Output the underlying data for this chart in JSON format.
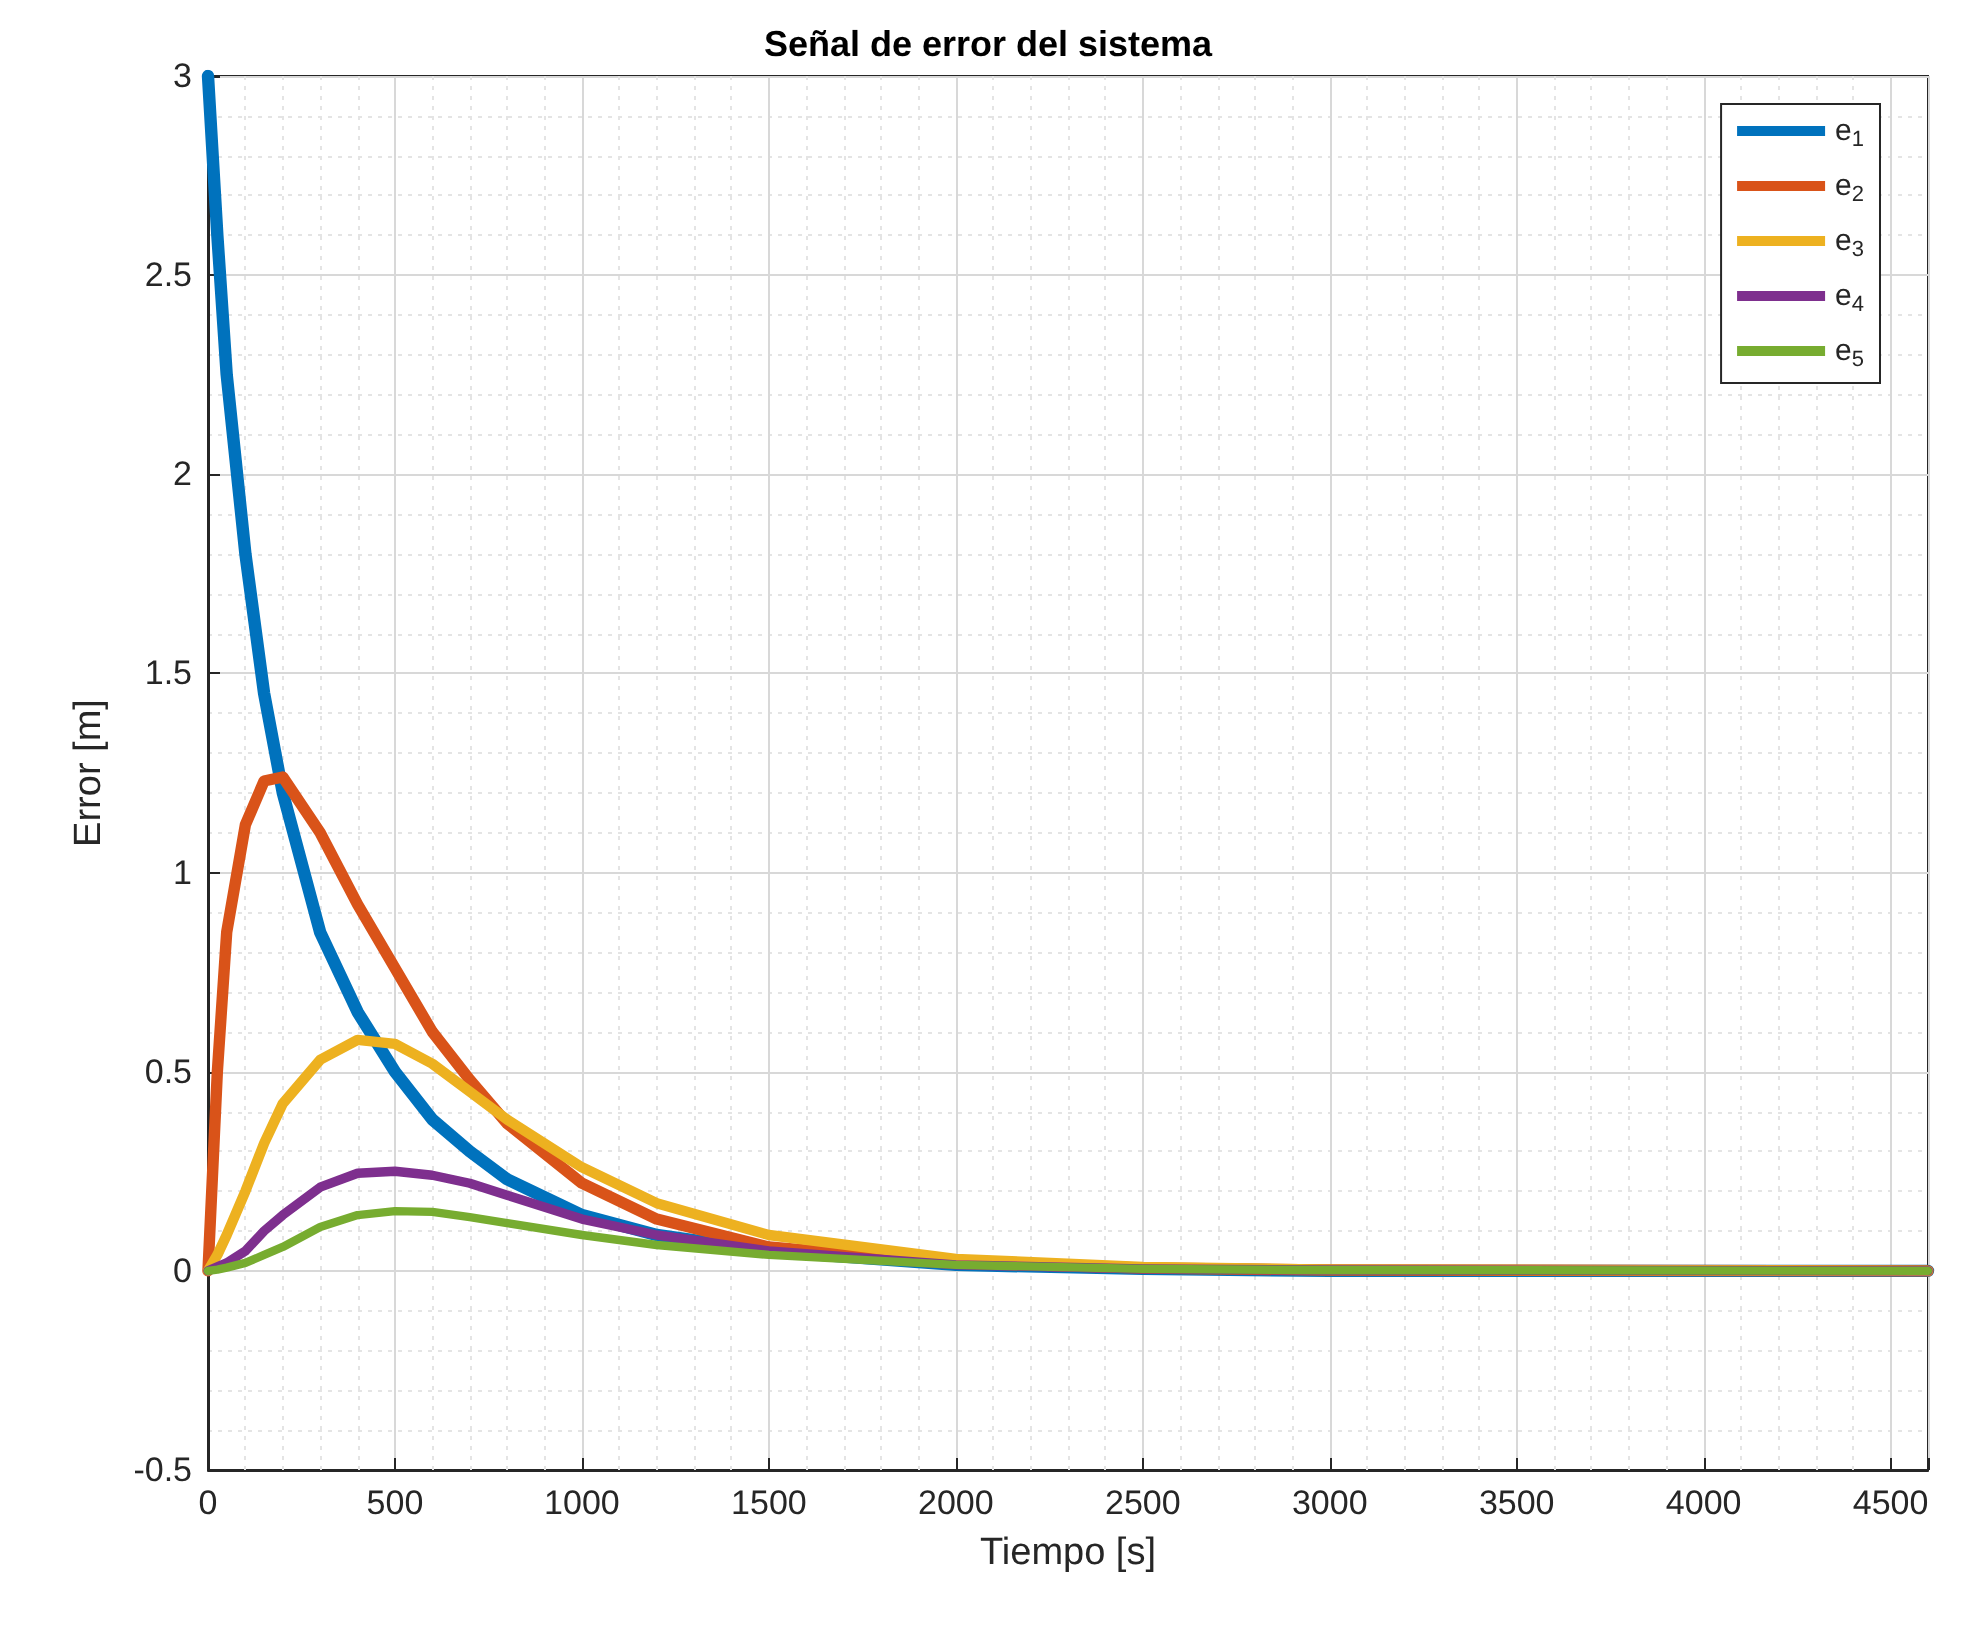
{
  "chart_data": {
    "type": "line",
    "title": "Señal de error del sistema",
    "xlabel": "Tiempo [s]",
    "ylabel": "Error [m]",
    "x": [
      0,
      25,
      50,
      100,
      150,
      200,
      300,
      400,
      500,
      600,
      700,
      800,
      1000,
      1200,
      1500,
      2000,
      2500,
      3000,
      4600
    ],
    "series": [
      {
        "name": "e$_{1}$",
        "color": "#0072bd",
        "values": [
          3,
          2.6,
          2.25,
          1.8,
          1.45,
          1.2,
          0.85,
          0.65,
          0.5,
          0.38,
          0.3,
          0.23,
          0.14,
          0.09,
          0.05,
          0.015,
          0.005,
          0,
          0
        ]
      },
      {
        "name": "e$_{2}$",
        "color": "#d95319",
        "values": [
          0,
          0.5,
          0.85,
          1.12,
          1.23,
          1.24,
          1.1,
          0.92,
          0.76,
          0.6,
          0.48,
          0.37,
          0.22,
          0.13,
          0.06,
          0.02,
          0.007,
          0.002,
          0
        ]
      },
      {
        "name": "e$_{3}$",
        "color": "#edb120",
        "values": [
          0,
          0.04,
          0.09,
          0.2,
          0.32,
          0.42,
          0.53,
          0.58,
          0.57,
          0.52,
          0.45,
          0.38,
          0.26,
          0.17,
          0.09,
          0.03,
          0.01,
          0.003,
          0
        ]
      },
      {
        "name": "e$_{4}$",
        "color": "#7e2f8e",
        "values": [
          0,
          0.01,
          0.02,
          0.05,
          0.1,
          0.14,
          0.21,
          0.245,
          0.25,
          0.24,
          0.22,
          0.19,
          0.13,
          0.09,
          0.05,
          0.015,
          0.005,
          0.002,
          0
        ]
      },
      {
        "name": "e$_{5}$",
        "color": "#77ac30",
        "values": [
          0,
          0.003,
          0.008,
          0.02,
          0.04,
          0.06,
          0.11,
          0.14,
          0.15,
          0.148,
          0.135,
          0.12,
          0.09,
          0.065,
          0.04,
          0.015,
          0.005,
          0.002,
          0
        ]
      }
    ],
    "xlim": [
      0,
      4600
    ],
    "xticks": [
      0,
      500,
      1000,
      1500,
      2000,
      2500,
      3000,
      3500,
      4000,
      4500
    ],
    "ylim": [
      -0.5,
      3
    ],
    "yticks": [
      -0.5,
      0,
      0.5,
      1,
      1.5,
      2,
      2.5,
      3
    ],
    "grid": true,
    "legend": "top right",
    "line_style": "solid"
  }
}
